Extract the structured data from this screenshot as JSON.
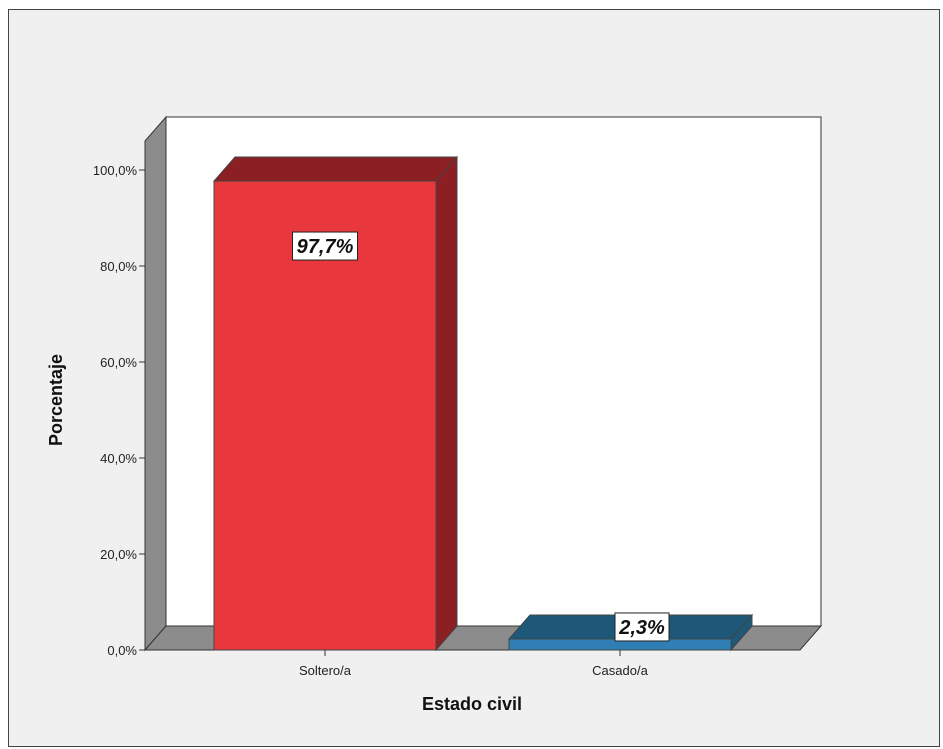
{
  "chart_data": {
    "type": "bar",
    "categories": [
      "Soltero/a",
      "Casado/a"
    ],
    "values": [
      97.7,
      2.3
    ],
    "data_labels": [
      "97,7%",
      "2,3%"
    ],
    "title": "",
    "xlabel": "Estado civil",
    "ylabel": "Porcentaje",
    "ylim": [
      0,
      100
    ],
    "yticks": [
      0,
      20,
      40,
      60,
      80,
      100
    ],
    "ytick_labels": [
      "0,0%",
      "20,0%",
      "40,0%",
      "60,0%",
      "80,0%",
      "100,0%"
    ],
    "bar_colors": [
      "#e8383d",
      "#2f7fb5"
    ],
    "bar_side_colors": [
      "#8b1f24",
      "#1e5878"
    ],
    "bar_top_colors": [
      "#8b1f24",
      "#1e5878"
    ],
    "style": "3d",
    "grid": false,
    "legend": "none"
  }
}
